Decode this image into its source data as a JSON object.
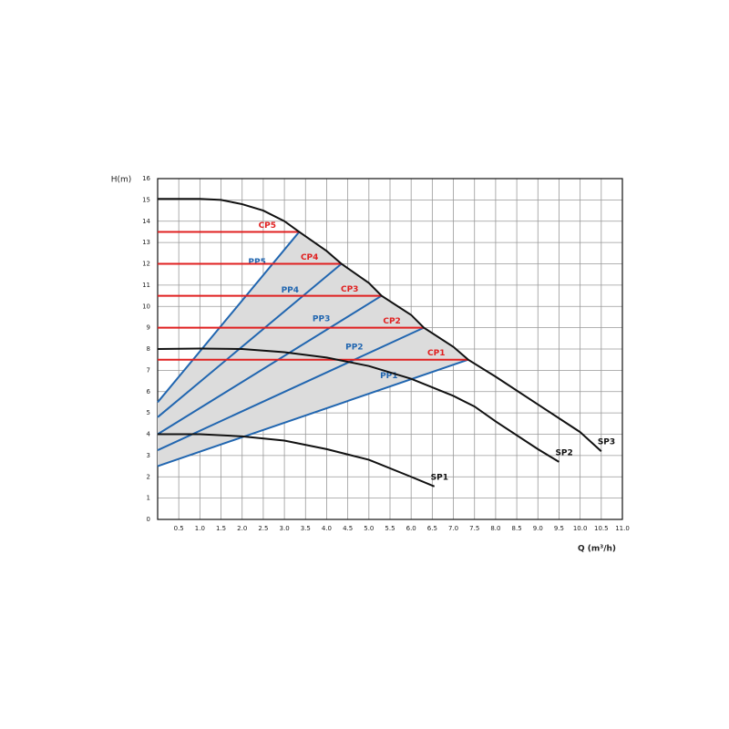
{
  "chart_data": {
    "type": "line",
    "y_label": "H(m)",
    "x_label": "Q (m³/h)",
    "xlim": [
      0,
      11
    ],
    "ylim": [
      0,
      16
    ],
    "xticks": [
      0.5,
      {
        "value": 1,
        "label": "1.0"
      },
      1.5,
      {
        "value": 2,
        "label": "2.0"
      },
      2.5,
      {
        "value": 3,
        "label": "3.0"
      },
      3.5,
      {
        "value": 4,
        "label": "4.0"
      },
      4.5,
      {
        "value": 5,
        "label": "5.0"
      },
      5.5,
      {
        "value": 6,
        "label": "6.0"
      },
      6.5,
      {
        "value": 7,
        "label": "7.0"
      },
      7.5,
      {
        "value": 8,
        "label": "8.0"
      },
      8.5,
      {
        "value": 9,
        "label": "9.0"
      },
      9.5,
      {
        "value": 10,
        "label": "10.0"
      },
      10.5,
      {
        "value": 11,
        "label": "11.0"
      }
    ],
    "yticks": [
      0,
      1,
      2,
      3,
      4,
      5,
      6,
      7,
      8,
      9,
      10,
      11,
      12,
      13,
      14,
      15,
      16
    ],
    "grid": true,
    "series": [
      {
        "name": "SP1",
        "color": "#111111",
        "x": [
          0,
          1,
          2,
          3,
          4,
          5,
          6,
          6.55
        ],
        "values": [
          4,
          4,
          3.9,
          3.7,
          3.3,
          2.8,
          2.0,
          1.55
        ]
      },
      {
        "name": "SP2",
        "color": "#111111",
        "x": [
          0,
          1,
          2,
          3,
          4,
          5,
          6,
          7,
          7.5,
          8,
          9,
          9.5
        ],
        "values": [
          8,
          8.02,
          8,
          7.85,
          7.6,
          7.2,
          6.6,
          5.8,
          5.3,
          4.6,
          3.3,
          2.7
        ]
      },
      {
        "name": "SP3",
        "color": "#111111",
        "x": [
          0,
          1,
          1.5,
          2,
          2.5,
          3,
          3.35,
          4,
          4.35,
          5,
          5.3,
          6,
          6.3,
          7,
          7.35,
          8,
          9,
          10,
          10.5
        ],
        "values": [
          15.05,
          15.05,
          15,
          14.8,
          14.5,
          14,
          13.5,
          12.6,
          12,
          11.1,
          10.5,
          9.6,
          9,
          8.1,
          7.5,
          6.7,
          5.4,
          4.1,
          3.2
        ]
      },
      {
        "name": "PP1",
        "color": "#2166b0",
        "x": [
          0,
          7.35
        ],
        "values": [
          2.5,
          7.5
        ]
      },
      {
        "name": "PP2",
        "color": "#2166b0",
        "x": [
          0,
          6.3
        ],
        "values": [
          3.25,
          9
        ]
      },
      {
        "name": "PP3",
        "color": "#2166b0",
        "x": [
          0,
          5.3
        ],
        "values": [
          4,
          10.5
        ]
      },
      {
        "name": "PP4",
        "color": "#2166b0",
        "x": [
          0,
          4.35
        ],
        "values": [
          4.8,
          12
        ]
      },
      {
        "name": "PP5",
        "color": "#2166b0",
        "x": [
          0,
          3.35
        ],
        "values": [
          5.5,
          13.5
        ]
      },
      {
        "name": "CP1",
        "color": "#e02020",
        "x": [
          0,
          7.35
        ],
        "values": [
          7.5,
          7.5
        ]
      },
      {
        "name": "CP2",
        "color": "#e02020",
        "x": [
          0,
          6.3
        ],
        "values": [
          9,
          9
        ]
      },
      {
        "name": "CP3",
        "color": "#e02020",
        "x": [
          0,
          5.3
        ],
        "values": [
          10.5,
          10.5
        ]
      },
      {
        "name": "CP4",
        "color": "#e02020",
        "x": [
          0,
          4.35
        ],
        "values": [
          12,
          12
        ]
      },
      {
        "name": "CP5",
        "color": "#e02020",
        "x": [
          0,
          3.35
        ],
        "values": [
          13.5,
          13.5
        ]
      }
    ]
  }
}
